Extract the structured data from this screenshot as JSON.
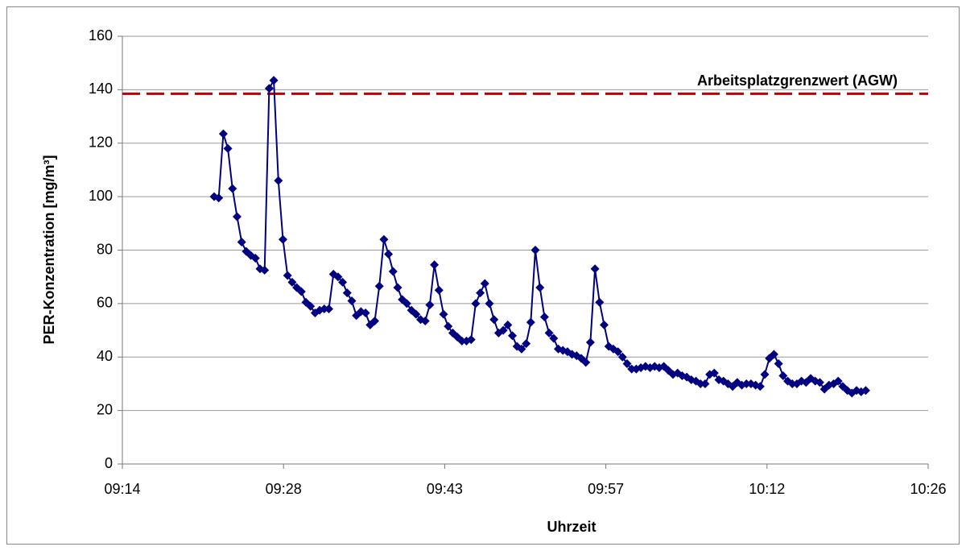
{
  "chart_data": {
    "type": "line",
    "x_label": "Uhrzeit",
    "y_label": "PER-Konzentration [mg/m³]",
    "color": "#000080",
    "marker": "diamond",
    "grid": true,
    "xlim": [
      554.4,
      626.4
    ],
    "xticks": [
      {
        "value": 554.4,
        "label": "09:14"
      },
      {
        "value": 568.8,
        "label": "09:28"
      },
      {
        "value": 583.2,
        "label": "09:43"
      },
      {
        "value": 597.6,
        "label": "09:57"
      },
      {
        "value": 612.0,
        "label": "10:12"
      },
      {
        "value": 626.4,
        "label": "10:26"
      }
    ],
    "ylim": [
      0,
      160
    ],
    "yticks": [
      0,
      20,
      40,
      60,
      80,
      100,
      120,
      140,
      160
    ],
    "reference_line": {
      "label": "Arbeitsplatzgrenzwert (AGW)",
      "value": 138.5,
      "color": "#c00000"
    },
    "x": [
      562.6,
      563.01,
      563.42,
      563.83,
      564.24,
      564.65,
      565.06,
      565.47,
      565.88,
      566.29,
      566.7,
      567.11,
      567.52,
      567.93,
      568.34,
      568.75,
      569.16,
      569.57,
      569.98,
      570.39,
      570.8,
      571.21,
      571.62,
      572.03,
      572.44,
      572.85,
      573.26,
      573.67,
      574.08,
      574.49,
      574.9,
      575.31,
      575.72,
      576.13,
      576.54,
      576.95,
      577.36,
      577.77,
      578.18,
      578.59,
      579.0,
      579.41,
      579.82,
      580.23,
      580.64,
      581.05,
      581.46,
      581.87,
      582.28,
      582.69,
      583.1,
      583.51,
      583.92,
      584.33,
      584.74,
      585.15,
      585.56,
      585.97,
      586.38,
      586.79,
      587.2,
      587.61,
      588.02,
      588.43,
      588.84,
      589.25,
      589.66,
      590.07,
      590.48,
      590.89,
      591.3,
      591.71,
      592.12,
      592.53,
      592.94,
      593.35,
      593.76,
      594.17,
      594.58,
      594.99,
      595.4,
      595.81,
      596.22,
      596.63,
      597.04,
      597.45,
      597.86,
      598.27,
      598.68,
      599.09,
      599.5,
      599.91,
      600.32,
      600.73,
      601.14,
      601.55,
      601.96,
      602.37,
      602.78,
      603.19,
      603.6,
      604.01,
      604.42,
      604.83,
      605.24,
      605.65,
      606.06,
      606.47,
      606.88,
      607.29,
      607.7,
      608.11,
      608.52,
      608.93,
      609.34,
      609.75,
      610.16,
      610.57,
      610.98,
      611.39,
      611.8,
      612.21,
      612.62,
      613.03,
      613.44,
      613.85,
      614.26,
      614.67,
      615.08,
      615.49,
      615.9,
      616.31,
      616.72,
      617.13,
      617.54,
      617.95,
      618.36,
      618.77,
      619.18,
      619.59,
      620.0,
      620.41,
      620.82
    ],
    "values": [
      100,
      99.5,
      123.5,
      118,
      103,
      92.5,
      83,
      79.5,
      78,
      77,
      73,
      72.5,
      140.5,
      143.5,
      106,
      84,
      70.5,
      68,
      66,
      64.5,
      60.5,
      59,
      56.5,
      57.5,
      58,
      58,
      71,
      70,
      68,
      64,
      61,
      55.5,
      57,
      56.5,
      52,
      53.5,
      66.5,
      84,
      78.5,
      72,
      66,
      61.5,
      60,
      57.5,
      56,
      54,
      53.5,
      59.5,
      74.5,
      65,
      56,
      51.5,
      49,
      47.5,
      46,
      46,
      46.5,
      60,
      64,
      67.5,
      60,
      54,
      49,
      50,
      52,
      48,
      44,
      43,
      45,
      53,
      80,
      66,
      55,
      49,
      47,
      43,
      42.5,
      42,
      41,
      40.5,
      39.5,
      38,
      45.5,
      73,
      60.5,
      52,
      44,
      43,
      42,
      40,
      37.5,
      35.5,
      35.5,
      36,
      36.5,
      36,
      36.5,
      36,
      36.5,
      35,
      33.5,
      34,
      33,
      32.5,
      31.5,
      31,
      30,
      30,
      33.5,
      34,
      31.5,
      31,
      30,
      29,
      30.5,
      29.5,
      30,
      30,
      29.5,
      29,
      33.5,
      39.5,
      41,
      37.5,
      33,
      31,
      30,
      30,
      31,
      30.5,
      32,
      31,
      30.5,
      28,
      29.5,
      30,
      31,
      29,
      27.5,
      26.5,
      27.5,
      27,
      27.5
    ]
  }
}
